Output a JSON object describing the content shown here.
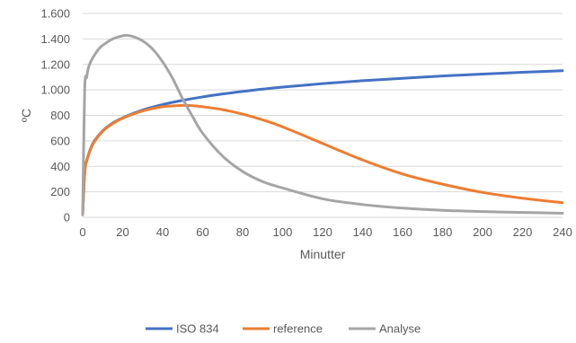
{
  "chart_data": {
    "type": "line",
    "title": "",
    "xlabel": "Minutter",
    "ylabel": "ºC",
    "xlim": [
      0,
      240
    ],
    "ylim": [
      0,
      1600
    ],
    "x_ticks": [
      0,
      20,
      40,
      60,
      80,
      100,
      120,
      140,
      160,
      180,
      200,
      220,
      240
    ],
    "x_tick_labels": [
      "0",
      "20",
      "40",
      "60",
      "80",
      "100",
      "120",
      "140",
      "160",
      "180",
      "200",
      "220",
      "240"
    ],
    "y_ticks": [
      0,
      200,
      400,
      600,
      800,
      1000,
      1200,
      1400,
      1600
    ],
    "y_tick_labels": [
      "0",
      "200",
      "400",
      "600",
      "800",
      "1.000",
      "1.200",
      "1.400",
      "1.600"
    ],
    "grid": "horizontal",
    "legend_position": "bottom",
    "series": [
      {
        "name": "ISO 834",
        "color": "#4472c4",
        "x": [
          0,
          1,
          2,
          5,
          10,
          15,
          20,
          30,
          40,
          50,
          60,
          70,
          80,
          90,
          100,
          120,
          140,
          160,
          180,
          200,
          220,
          240
        ],
        "y": [
          20,
          349,
          445,
          576,
          678,
          739,
          781,
          842,
          885,
          918,
          945,
          968,
          988,
          1006,
          1022,
          1049,
          1072,
          1091,
          1109,
          1124,
          1138,
          1151
        ]
      },
      {
        "name": "reference",
        "color": "#ed7d31",
        "x": [
          0,
          1,
          2,
          5,
          10,
          15,
          20,
          30,
          40,
          50,
          55,
          60,
          70,
          80,
          90,
          100,
          120,
          140,
          160,
          180,
          200,
          220,
          240
        ],
        "y": [
          20,
          340,
          440,
          570,
          675,
          735,
          778,
          835,
          868,
          878,
          876,
          868,
          845,
          810,
          765,
          710,
          580,
          450,
          340,
          260,
          195,
          150,
          115
        ]
      },
      {
        "name": "Analyse",
        "color": "#a5a5a5",
        "x": [
          0,
          1,
          2,
          3,
          5,
          8,
          10,
          15,
          20,
          22,
          25,
          30,
          35,
          40,
          45,
          50,
          55,
          60,
          70,
          80,
          90,
          100,
          120,
          140,
          160,
          180,
          200,
          220,
          240
        ],
        "y": [
          20,
          1000,
          1100,
          1180,
          1250,
          1320,
          1350,
          1400,
          1425,
          1428,
          1420,
          1385,
          1320,
          1220,
          1090,
          930,
          790,
          660,
          480,
          360,
          280,
          230,
          145,
          100,
          72,
          55,
          45,
          38,
          32
        ]
      }
    ]
  }
}
